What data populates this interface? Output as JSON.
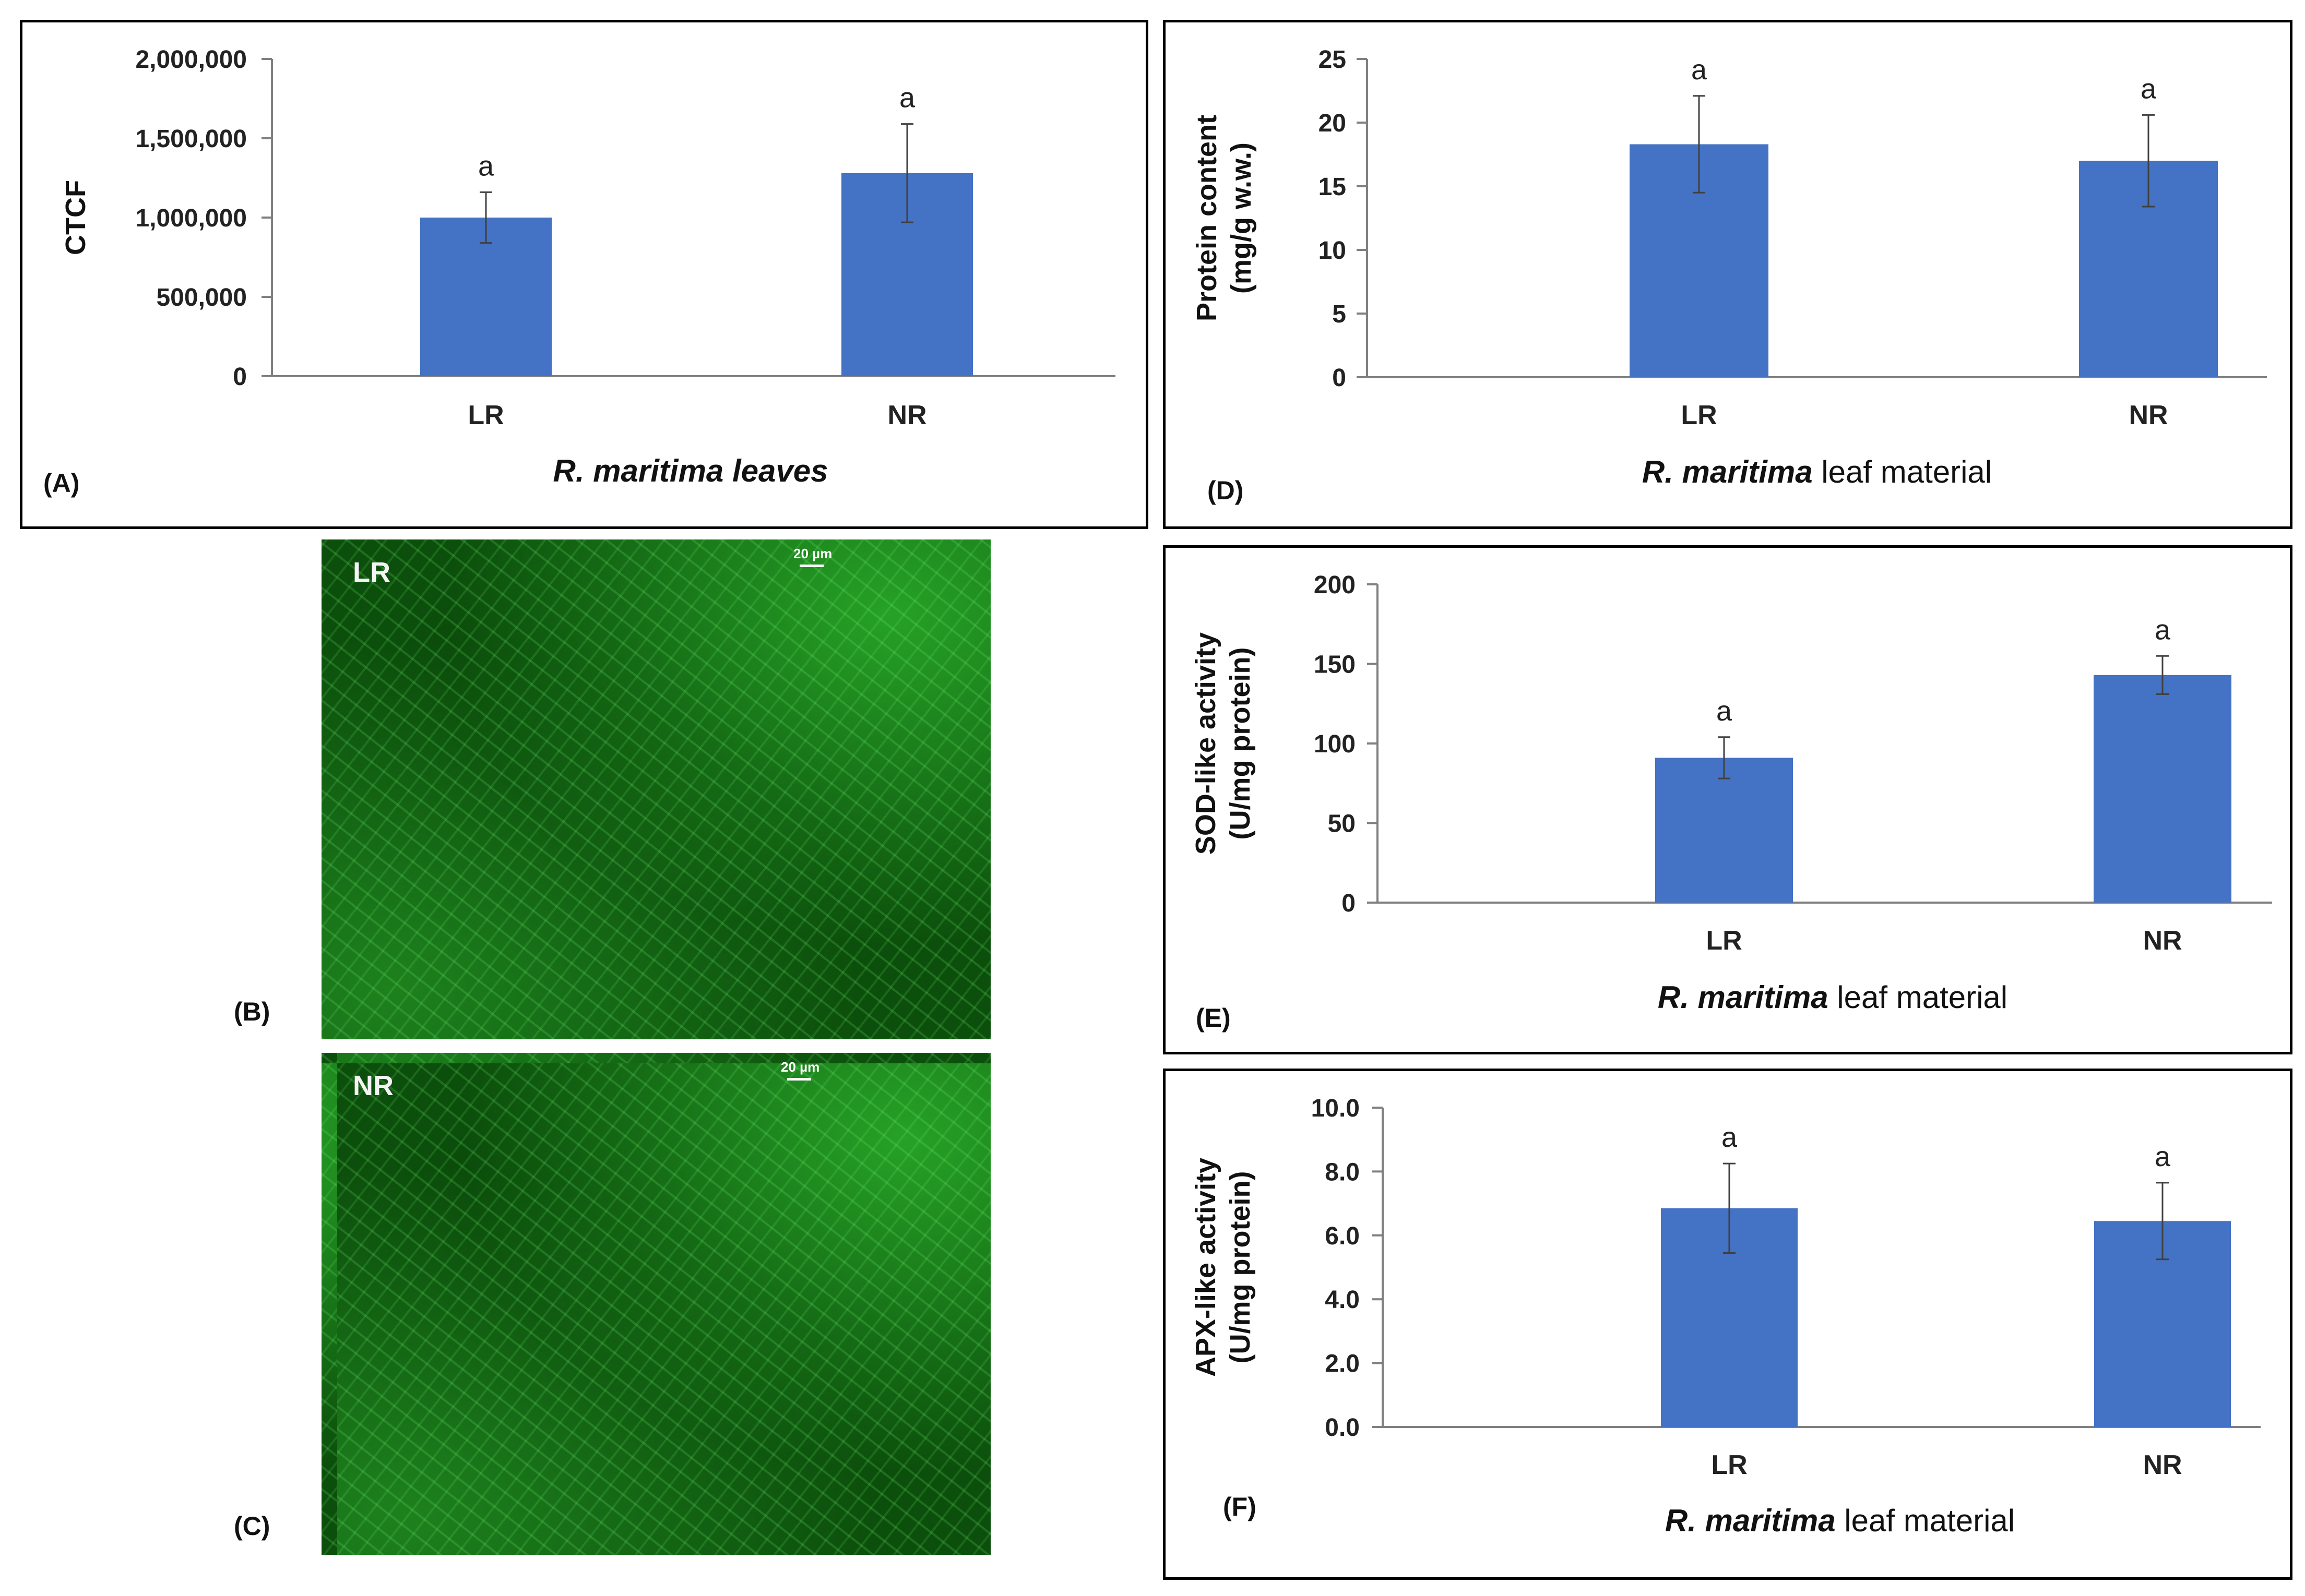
{
  "colors": {
    "bar": "#4472C4",
    "axis": "#808080",
    "error": "#404040"
  },
  "figure_labels": {
    "B": "(B)",
    "C": "(C)"
  },
  "micrographs": [
    {
      "label": "LR",
      "scale_bar": "20 µm"
    },
    {
      "label": "NR",
      "scale_bar": "20 µm"
    }
  ],
  "chart_data": [
    {
      "panel": "(A)",
      "type": "bar",
      "categories": [
        "LR",
        "NR"
      ],
      "values": [
        1000000,
        1280000
      ],
      "errors": [
        160000,
        310000
      ],
      "significance": [
        "a",
        "a"
      ],
      "ylim": [
        0,
        2000000
      ],
      "yticks": [
        0,
        500000,
        1000000,
        1500000,
        2000000
      ],
      "ytick_labels": [
        "0",
        "500,000",
        "1,000,000",
        "1,500,000",
        "2,000,000"
      ],
      "ylabel": [
        "CTCF"
      ],
      "xlabel": [
        {
          "text": "R. maritima leaves",
          "style": "italic"
        }
      ]
    },
    {
      "panel": "(D)",
      "type": "bar",
      "categories": [
        "LR",
        "NR"
      ],
      "values": [
        18.3,
        17.0
      ],
      "errors": [
        3.8,
        3.6
      ],
      "significance": [
        "a",
        "a"
      ],
      "ylim": [
        0,
        25
      ],
      "yticks": [
        0,
        5,
        10,
        15,
        20,
        25
      ],
      "ytick_labels": [
        "0",
        "5",
        "10",
        "15",
        "20",
        "25"
      ],
      "ylabel": [
        "Protein content",
        "(mg/g w.w.)"
      ],
      "xlabel": [
        {
          "text": "R. maritima",
          "style": "italic"
        },
        {
          "text": " leaf material",
          "style": "normal"
        }
      ]
    },
    {
      "panel": "(E)",
      "type": "bar",
      "categories": [
        "LR",
        "NR"
      ],
      "values": [
        91,
        143
      ],
      "errors": [
        13,
        12
      ],
      "significance": [
        "a",
        "a"
      ],
      "ylim": [
        0,
        200
      ],
      "yticks": [
        0,
        50,
        100,
        150,
        200
      ],
      "ytick_labels": [
        "0",
        "50",
        "100",
        "150",
        "200"
      ],
      "ylabel": [
        "SOD-like activity",
        "(U/mg protein)"
      ],
      "xlabel": [
        {
          "text": "R. maritima",
          "style": "italic"
        },
        {
          "text": " leaf material",
          "style": "normal"
        }
      ]
    },
    {
      "panel": "(F)",
      "type": "bar",
      "categories": [
        "LR",
        "NR"
      ],
      "values": [
        6.85,
        6.45
      ],
      "errors": [
        1.4,
        1.2
      ],
      "significance": [
        "a",
        "a"
      ],
      "ylim": [
        0,
        10
      ],
      "yticks": [
        0,
        2,
        4,
        6,
        8,
        10
      ],
      "ytick_labels": [
        "0.0",
        "2.0",
        "4.0",
        "6.0",
        "8.0",
        "10.0"
      ],
      "ylabel": [
        "APX-like activity",
        "(U/mg protein)"
      ],
      "xlabel": [
        {
          "text": "R. maritima",
          "style": "italic"
        },
        {
          "text": " leaf material",
          "style": "normal"
        }
      ]
    }
  ]
}
